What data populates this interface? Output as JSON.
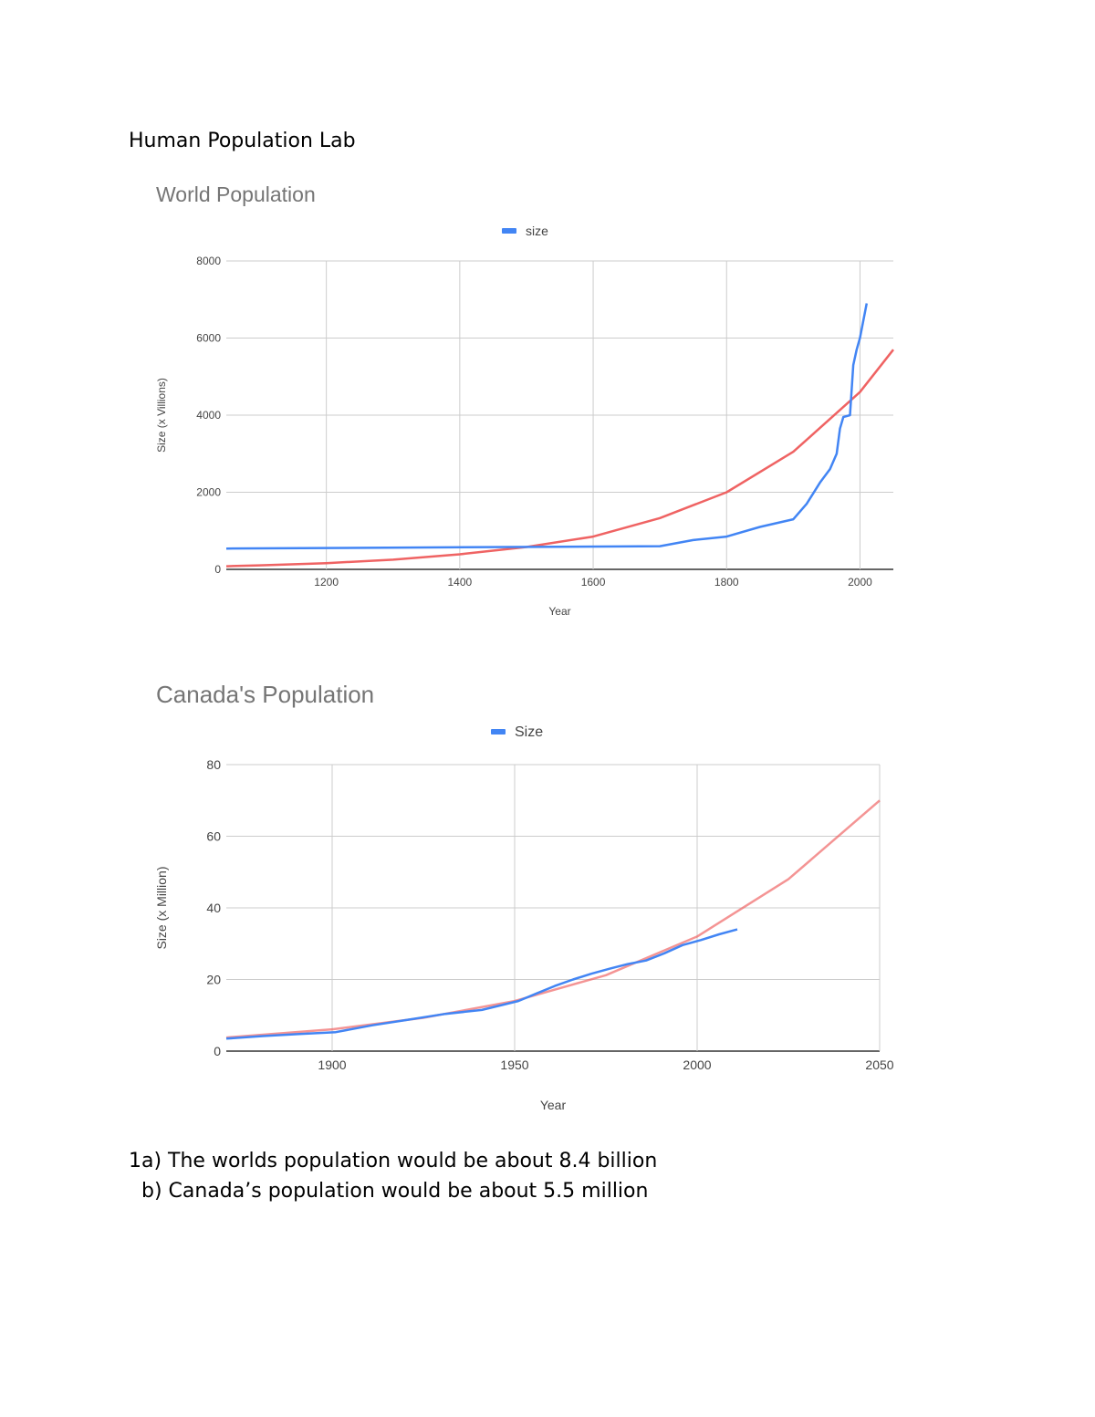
{
  "document": {
    "title": "Human Population Lab",
    "answers": [
      "1a) The worlds population would be about 8.4 billion",
      "  b) Canada’s population would be about 5.5 million"
    ]
  },
  "colors": {
    "data_series": "#4285f4",
    "trendline": "#ee5b5b",
    "grid": "#cccccc",
    "axis_text": "#444444",
    "title_text": "#757575"
  },
  "chart_data": [
    {
      "type": "line",
      "title": "World Population",
      "xlabel": "Year",
      "ylabel": "Size (x Villions)",
      "xlim": [
        1050,
        2050
      ],
      "ylim": [
        0,
        8000
      ],
      "x_ticks": [
        1200,
        1400,
        1600,
        1800,
        2000
      ],
      "y_ticks": [
        0,
        2000,
        4000,
        6000,
        8000
      ],
      "grid": true,
      "legend_position": "top",
      "series": [
        {
          "name": "size",
          "points": [
            [
              1050,
              540
            ],
            [
              1700,
              600
            ],
            [
              1750,
              760
            ],
            [
              1800,
              850
            ],
            [
              1850,
              1100
            ],
            [
              1900,
              1300
            ],
            [
              1920,
              1700
            ],
            [
              1940,
              2250
            ],
            [
              1955,
              2600
            ],
            [
              1965,
              3000
            ],
            [
              1970,
              3650
            ],
            [
              1975,
              3950
            ],
            [
              1985,
              4000
            ],
            [
              1990,
              5300
            ],
            [
              1995,
              5700
            ],
            [
              2000,
              6000
            ],
            [
              2010,
              6900
            ]
          ]
        }
      ],
      "trendline": {
        "type": "exponential",
        "points": [
          [
            1050,
            80
          ],
          [
            1100,
            105
          ],
          [
            1200,
            160
          ],
          [
            1300,
            250
          ],
          [
            1400,
            390
          ],
          [
            1500,
            580
          ],
          [
            1600,
            850
          ],
          [
            1700,
            1330
          ],
          [
            1800,
            2000
          ],
          [
            1900,
            3050
          ],
          [
            2000,
            4600
          ],
          [
            2050,
            5700
          ]
        ]
      }
    },
    {
      "type": "line",
      "title": "Canada's Population",
      "xlabel": "Year",
      "ylabel": "Size (x Million)",
      "xlim": [
        1871,
        2050
      ],
      "ylim": [
        0,
        80
      ],
      "x_ticks": [
        1900,
        1950,
        2000,
        2050
      ],
      "y_ticks": [
        0,
        20,
        40,
        60,
        80
      ],
      "grid": true,
      "legend_position": "top",
      "series": [
        {
          "name": "Size",
          "points": [
            [
              1871,
              3.5
            ],
            [
              1881,
              4.2
            ],
            [
              1891,
              4.8
            ],
            [
              1901,
              5.3
            ],
            [
              1911,
              7.2
            ],
            [
              1921,
              8.8
            ],
            [
              1931,
              10.4
            ],
            [
              1941,
              11.5
            ],
            [
              1951,
              14.0
            ],
            [
              1956,
              16.1
            ],
            [
              1961,
              18.2
            ],
            [
              1966,
              20.0
            ],
            [
              1971,
              21.6
            ],
            [
              1976,
              23.0
            ],
            [
              1981,
              24.3
            ],
            [
              1986,
              25.3
            ],
            [
              1991,
              27.3
            ],
            [
              1996,
              29.6
            ],
            [
              2001,
              31.0
            ],
            [
              2006,
              32.6
            ],
            [
              2011,
              34.0
            ]
          ]
        }
      ],
      "trendline": {
        "type": "exponential",
        "points": [
          [
            1871,
            3.8
          ],
          [
            1900,
            6.1
          ],
          [
            1925,
            9.3
          ],
          [
            1950,
            14.0
          ],
          [
            1975,
            21.2
          ],
          [
            2000,
            32.0
          ],
          [
            2025,
            48.0
          ],
          [
            2050,
            70.0
          ]
        ]
      }
    }
  ]
}
